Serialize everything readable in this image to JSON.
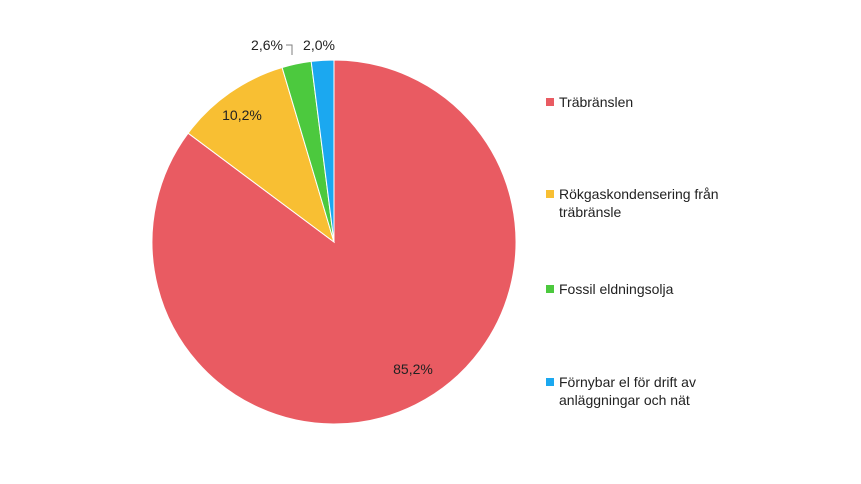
{
  "chart_data": {
    "type": "pie",
    "title": "",
    "start_angle_deg": 0,
    "direction": "clockwise",
    "slices": [
      {
        "label": "Träbränslen",
        "value": 85.2,
        "display": "85,2%",
        "color": "#E95B62"
      },
      {
        "label": "Rökgaskondensering från\nträbränsle",
        "value": 10.2,
        "display": "10,2%",
        "color": "#F8BF33"
      },
      {
        "label": "Fossil eldningsolja",
        "value": 2.6,
        "display": "2,6%",
        "color": "#4CC93E"
      },
      {
        "label": "Förnybar el för drift av\nanläggningar och nät",
        "value": 2.0,
        "display": "2,0%",
        "color": "#1BA8F0"
      }
    ],
    "legend_position": "right"
  }
}
